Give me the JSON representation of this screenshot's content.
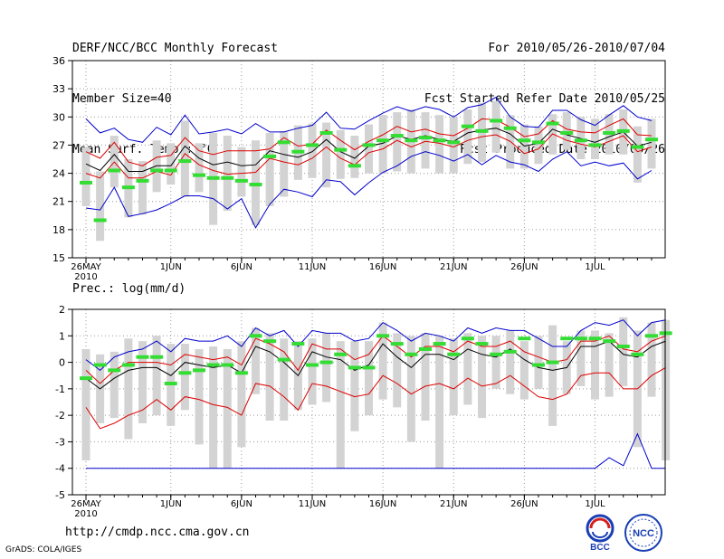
{
  "header": {
    "title": "DERF/NCC/BCC Monthly Forecast",
    "member_size": "Member Size=40",
    "variable": "Mean Surf. Temp.: °C",
    "period": "For 2010/05/26-2010/07/04",
    "started": "Fcst Started Refer Date 2010/05/25",
    "produced": "Fcst Produced Date 2010/05/26"
  },
  "footer": {
    "url": "http://cmdp.ncc.cma.gov.cn",
    "grads": "GrADS: COLA/IGES",
    "logo_left_text": "BCC",
    "logo_right_text": "NCC"
  },
  "colors": {
    "envelope": "#0000cc",
    "spread": "#dd0000",
    "mean": "#000000",
    "box": "#d3d3d3",
    "observed": "#33dd33"
  },
  "chart_data": [
    {
      "type": "box-line",
      "title": "Mean Surf. Temp.: °C",
      "ylim": [
        15,
        36
      ],
      "yticks": [
        15,
        18,
        21,
        24,
        27,
        30,
        33,
        36
      ],
      "x_tick_labels": [
        "26MAY\n2010",
        "1JUN",
        "6JUN",
        "11JUN",
        "16JUN",
        "21JUN",
        "26JUN",
        "1JUL"
      ],
      "x_tick_days": [
        0,
        6,
        11,
        16,
        21,
        26,
        31,
        36
      ],
      "days": 40,
      "series": [
        {
          "name": "max",
          "color": "envelope",
          "values": [
            29.8,
            28.3,
            28.8,
            27.6,
            27.3,
            28.9,
            28.1,
            30.2,
            28.2,
            28.4,
            28.7,
            28.2,
            29.3,
            28.4,
            28.4,
            28.8,
            29.1,
            30.5,
            28.8,
            28.7,
            29.6,
            30.4,
            31.1,
            30.6,
            31.1,
            30.8,
            30.0,
            31.0,
            31.3,
            32.1,
            30.0,
            29.0,
            28.9,
            30.7,
            30.7,
            29.7,
            29.1,
            30.2,
            31.2,
            30.0,
            29.6
          ]
        },
        {
          "name": "upper",
          "color": "spread",
          "values": [
            26.3,
            25.6,
            27.3,
            25.2,
            24.8,
            25.7,
            25.9,
            27.8,
            26.4,
            26.0,
            26.4,
            26.4,
            26.4,
            26.6,
            27.8,
            26.9,
            27.1,
            28.6,
            27.5,
            26.5,
            27.4,
            28.1,
            29.0,
            28.4,
            28.7,
            28.2,
            28.0,
            28.8,
            29.8,
            29.7,
            28.9,
            27.9,
            28.2,
            29.6,
            28.7,
            28.4,
            28.3,
            29.1,
            29.8,
            28.1,
            28.0
          ]
        },
        {
          "name": "mean",
          "color": "mean",
          "values": [
            25.0,
            24.3,
            26.0,
            24.2,
            24.2,
            24.8,
            24.8,
            26.9,
            25.6,
            24.9,
            25.2,
            24.8,
            24.9,
            26.4,
            26.0,
            25.7,
            26.3,
            27.6,
            26.3,
            25.6,
            26.9,
            27.2,
            28.0,
            27.6,
            28.0,
            27.6,
            27.4,
            28.3,
            28.6,
            28.8,
            28.2,
            26.9,
            27.2,
            28.7,
            28.1,
            27.7,
            27.3,
            27.9,
            28.4,
            26.9,
            27.3
          ]
        },
        {
          "name": "lower",
          "color": "spread",
          "values": [
            24.0,
            23.5,
            25.2,
            23.5,
            23.5,
            24.2,
            23.8,
            26.1,
            24.9,
            24.3,
            23.9,
            24.0,
            24.1,
            25.6,
            25.2,
            24.9,
            25.6,
            26.8,
            25.6,
            24.9,
            26.2,
            26.6,
            27.5,
            26.8,
            27.4,
            27.2,
            26.8,
            27.5,
            27.9,
            28.1,
            27.4,
            26.1,
            26.6,
            28.2,
            27.5,
            27.1,
            26.8,
            27.4,
            28.0,
            26.3,
            26.8
          ]
        },
        {
          "name": "min",
          "color": "envelope",
          "values": [
            20.3,
            20.1,
            22.5,
            19.4,
            19.7,
            20.1,
            20.8,
            21.6,
            21.6,
            21.3,
            20.2,
            21.3,
            18.2,
            20.7,
            22.3,
            22.0,
            21.5,
            23.3,
            23.1,
            21.7,
            23.0,
            24.1,
            24.8,
            25.8,
            26.3,
            25.9,
            25.3,
            26.0,
            24.9,
            25.9,
            25.2,
            24.9,
            24.2,
            25.5,
            26.3,
            24.8,
            25.2,
            24.8,
            25.1,
            23.4,
            24.3
          ]
        }
      ],
      "boxes": [
        [
          20.5,
          26.8
        ],
        [
          16.8,
          24.2
        ],
        [
          22.5,
          28.0
        ],
        [
          19.3,
          25.5
        ],
        [
          19.6,
          25.3
        ],
        [
          22.0,
          27.5
        ],
        [
          22.8,
          27.2
        ],
        [
          21.5,
          29.6
        ],
        [
          22.0,
          27.2
        ],
        [
          18.5,
          28.3
        ],
        [
          20.0,
          28.0
        ],
        [
          21.5,
          26.8
        ],
        [
          18.5,
          27.5
        ],
        [
          20.5,
          28.3
        ],
        [
          21.5,
          28.5
        ],
        [
          23.3,
          29.1
        ],
        [
          23.5,
          29.3
        ],
        [
          22.5,
          29.4
        ],
        [
          23.4,
          28.6
        ],
        [
          23.5,
          28.0
        ],
        [
          24.0,
          29.2
        ],
        [
          24.0,
          30.2
        ],
        [
          24.2,
          30.5
        ],
        [
          24.0,
          30.8
        ],
        [
          24.5,
          30.5
        ],
        [
          24.0,
          30.2
        ],
        [
          24.0,
          30.0
        ],
        [
          25.0,
          30.8
        ],
        [
          25.2,
          31.5
        ],
        [
          26.2,
          31.7
        ],
        [
          24.5,
          30.2
        ],
        [
          24.5,
          29.2
        ],
        [
          25.0,
          29.0
        ],
        [
          26.0,
          30.3
        ],
        [
          26.5,
          30.5
        ],
        [
          25.5,
          30.0
        ],
        [
          25.5,
          29.8
        ],
        [
          26.0,
          30.3
        ],
        [
          26.0,
          30.8
        ],
        [
          23.0,
          29.0
        ],
        [
          24.5,
          29.8
        ]
      ],
      "observed": [
        23.0,
        19.0,
        24.3,
        22.5,
        23.2,
        24.3,
        24.3,
        25.3,
        23.8,
        23.5,
        23.5,
        23.2,
        22.8,
        25.8,
        27.3,
        26.3,
        27.0,
        28.3,
        26.5,
        24.8,
        27.0,
        27.5,
        28.0,
        27.5,
        27.8,
        27.5,
        27.3,
        29.0,
        28.5,
        29.6,
        28.8,
        27.5,
        27.3,
        29.3,
        28.3,
        27.5,
        27.0,
        28.3,
        28.5,
        26.8,
        27.6
      ]
    },
    {
      "type": "box-line",
      "title": "Prec.: log(mm/d)",
      "ylim": [
        -5,
        2
      ],
      "yticks": [
        -5,
        -4,
        -3,
        -2,
        -1,
        0,
        1,
        2
      ],
      "x_tick_labels": [
        "26MAY\n2010",
        "1JUN",
        "6JUN",
        "11JUN",
        "16JUN",
        "21JUN",
        "26JUN",
        "1JUL"
      ],
      "x_tick_days": [
        0,
        6,
        11,
        16,
        21,
        26,
        31,
        36
      ],
      "days": 40,
      "series": [
        {
          "name": "max",
          "color": "envelope",
          "values": [
            0.1,
            -0.3,
            0.2,
            0.4,
            0.5,
            0.8,
            0.4,
            0.9,
            0.8,
            0.8,
            1.0,
            0.6,
            1.3,
            1.0,
            1.2,
            0.6,
            1.2,
            1.1,
            1.1,
            0.8,
            0.9,
            1.5,
            1.2,
            0.8,
            1.1,
            1.0,
            0.8,
            1.3,
            1.1,
            1.3,
            1.2,
            1.2,
            0.9,
            0.6,
            0.6,
            1.2,
            1.5,
            1.4,
            1.6,
            1.0,
            1.5,
            1.6
          ]
        },
        {
          "name": "upper",
          "color": "spread",
          "values": [
            -0.3,
            -0.8,
            -0.3,
            0.0,
            0.0,
            0.0,
            -0.1,
            0.3,
            0.2,
            0.1,
            0.2,
            -0.1,
            0.9,
            0.7,
            0.4,
            -0.3,
            0.7,
            0.5,
            0.5,
            0.1,
            0.3,
            1.0,
            0.6,
            0.2,
            0.6,
            0.6,
            0.4,
            0.8,
            0.6,
            0.6,
            0.8,
            0.4,
            0.2,
            0.0,
            0.1,
            0.8,
            0.8,
            1.0,
            0.5,
            0.4,
            0.8,
            1.0
          ]
        },
        {
          "name": "mean",
          "color": "mean",
          "values": [
            -0.6,
            -1.0,
            -0.6,
            -0.3,
            -0.2,
            -0.2,
            -0.5,
            0.0,
            -0.1,
            -0.2,
            -0.1,
            -0.4,
            0.6,
            0.4,
            0.0,
            -0.5,
            0.4,
            0.2,
            0.1,
            -0.3,
            -0.1,
            0.7,
            0.2,
            -0.2,
            0.3,
            0.3,
            0.1,
            0.5,
            0.3,
            0.2,
            0.5,
            0.1,
            -0.2,
            -0.3,
            -0.2,
            0.6,
            0.6,
            0.8,
            0.3,
            0.2,
            0.6,
            0.8
          ]
        },
        {
          "name": "lower",
          "color": "spread",
          "values": [
            -1.7,
            -2.5,
            -2.3,
            -2.0,
            -1.8,
            -1.4,
            -1.8,
            -1.3,
            -1.4,
            -1.6,
            -1.7,
            -2.0,
            -0.8,
            -0.9,
            -1.3,
            -1.8,
            -0.8,
            -0.9,
            -1.1,
            -1.3,
            -1.2,
            -0.5,
            -0.8,
            -1.2,
            -0.9,
            -0.8,
            -1.0,
            -0.6,
            -0.9,
            -0.8,
            -0.5,
            -0.9,
            -1.3,
            -1.4,
            -1.2,
            -0.5,
            -0.4,
            -0.4,
            -1.0,
            -1.0,
            -0.5,
            -0.2
          ]
        },
        {
          "name": "min",
          "color": "envelope",
          "values": [
            -4,
            -4,
            -4,
            -4,
            -4,
            -4,
            -4,
            -4,
            -4,
            -4,
            -4,
            -4,
            -4,
            -4,
            -4,
            -4,
            -4,
            -4,
            -4,
            -4,
            -4,
            -4,
            -4,
            -4,
            -4,
            -4,
            -4,
            -4,
            -4,
            -4,
            -4,
            -4,
            -4,
            -4,
            -4,
            -4,
            -4,
            -3.6,
            -3.9,
            -2.7,
            -4,
            -4
          ]
        }
      ],
      "boxes": [
        [
          -3.7,
          0.5
        ],
        [
          -2.3,
          0.3
        ],
        [
          -2.1,
          0.4
        ],
        [
          -2.9,
          0.9
        ],
        [
          -2.3,
          0.8
        ],
        [
          -2.0,
          1.0
        ],
        [
          -2.4,
          0.7
        ],
        [
          -1.8,
          0.7
        ],
        [
          -3.1,
          0.5
        ],
        [
          -4.0,
          0.6
        ],
        [
          -4.0,
          0.5
        ],
        [
          -3.2,
          0.8
        ],
        [
          -1.2,
          1.3
        ],
        [
          -2.2,
          1.1
        ],
        [
          -2.2,
          0.9
        ],
        [
          -1.8,
          0.8
        ],
        [
          -1.6,
          0.9
        ],
        [
          -1.5,
          1.1
        ],
        [
          -4.0,
          0.8
        ],
        [
          -2.6,
          0.8
        ],
        [
          -2.0,
          0.8
        ],
        [
          -1.4,
          1.5
        ],
        [
          -1.7,
          1.1
        ],
        [
          -3.0,
          1.0
        ],
        [
          -2.2,
          1.1
        ],
        [
          -4.0,
          1.0
        ],
        [
          -2.0,
          0.9
        ],
        [
          -1.6,
          1.1
        ],
        [
          -2.1,
          1.0
        ],
        [
          -1.0,
          1.0
        ],
        [
          -1.2,
          1.2
        ],
        [
          -1.4,
          0.8
        ],
        [
          -1.0,
          1.0
        ],
        [
          -2.4,
          1.4
        ],
        [
          -1.2,
          0.8
        ],
        [
          -0.9,
          1.2
        ],
        [
          -1.4,
          1.2
        ],
        [
          -1.3,
          1.1
        ],
        [
          -0.9,
          1.7
        ],
        [
          -3.2,
          1.2
        ],
        [
          -1.3,
          1.5
        ],
        [
          -3.7,
          1.6
        ]
      ],
      "observed": [
        -0.6,
        -0.1,
        -0.3,
        -0.1,
        0.2,
        0.2,
        -0.8,
        -0.4,
        -0.3,
        -0.1,
        -0.1,
        -0.4,
        1.0,
        0.8,
        0.1,
        0.7,
        -0.1,
        0.0,
        0.3,
        -0.2,
        -0.2,
        1.0,
        0.7,
        0.3,
        0.5,
        0.7,
        0.3,
        0.9,
        0.7,
        0.3,
        0.4,
        0.9,
        -0.1,
        0.0,
        0.9,
        0.9,
        0.9,
        0.8,
        0.6,
        0.3,
        1.0,
        1.1
      ]
    }
  ]
}
